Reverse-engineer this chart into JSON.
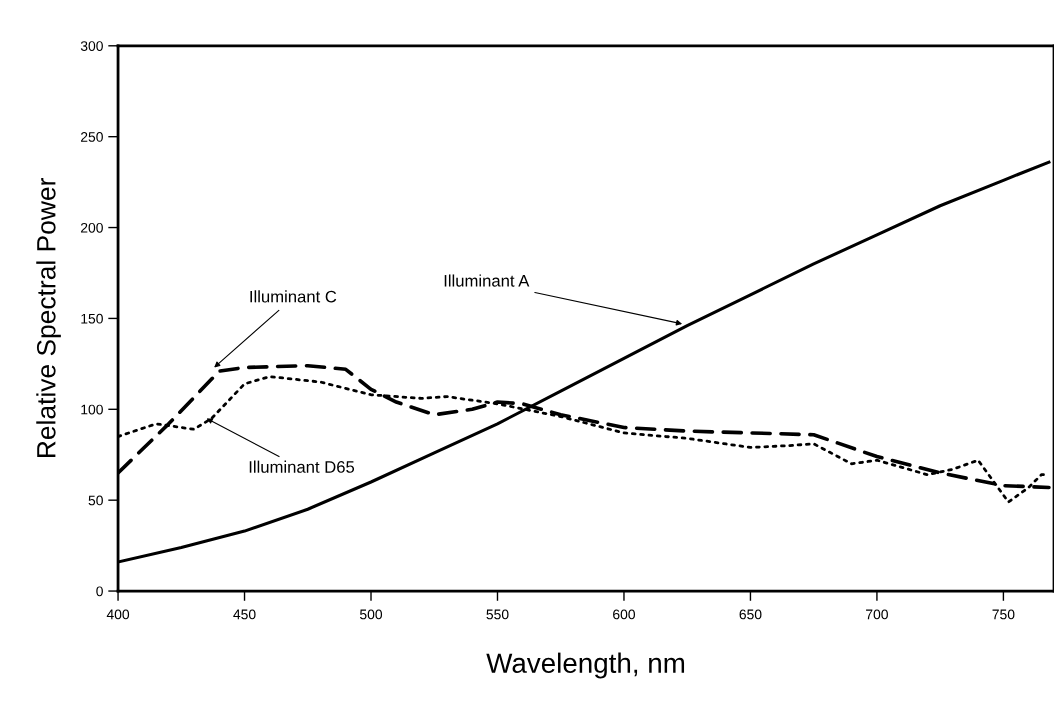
{
  "chart_data": {
    "type": "line",
    "xlabel": "Wavelength, nm",
    "ylabel": "Relative Spectral Power",
    "xlim": [
      400,
      770
    ],
    "ylim": [
      0,
      300
    ],
    "xticks": [
      400,
      450,
      500,
      550,
      600,
      650,
      700,
      750
    ],
    "yticks": [
      0,
      50,
      100,
      150,
      200,
      250,
      300
    ],
    "grid": false,
    "legend": false,
    "marker": "none",
    "series": [
      {
        "color": "#000000",
        "line_style": "solid",
        "x": [
          400,
          425,
          450,
          475,
          500,
          525,
          550,
          575,
          600,
          625,
          650,
          675,
          700,
          725,
          750,
          768
        ],
        "values": [
          16,
          24,
          33,
          45,
          60,
          76,
          92,
          110,
          128,
          146,
          163,
          180,
          196,
          212,
          226,
          236
        ]
      },
      {
        "color": "#000000",
        "line_style": "dashed",
        "x": [
          400,
          420,
          440,
          450,
          475,
          490,
          500,
          510,
          525,
          540,
          550,
          560,
          575,
          600,
          625,
          650,
          675,
          700,
          725,
          750,
          768
        ],
        "values": [
          65,
          92,
          121,
          123,
          124,
          122,
          111,
          104,
          97,
          100,
          104,
          103,
          97,
          90,
          88,
          87,
          86,
          74,
          65,
          58,
          57
        ]
      },
      {
        "color": "#000000",
        "line_style": "dotted",
        "x": [
          400,
          415,
          430,
          437,
          450,
          460,
          480,
          500,
          520,
          530,
          550,
          575,
          600,
          625,
          650,
          665,
          675,
          690,
          700,
          720,
          730,
          740,
          752,
          760,
          765,
          768
        ],
        "values": [
          85,
          92,
          89,
          95,
          114,
          118,
          115,
          108,
          106,
          107,
          103,
          96,
          87,
          84,
          79,
          80,
          81,
          70,
          72,
          64,
          67,
          72,
          49,
          57,
          64,
          64
        ]
      }
    ],
    "annotations": [
      {
        "text": "Illuminant A",
        "x": 623,
        "y": 147
      },
      {
        "text": "Illuminant C",
        "x": 438,
        "y": 123
      },
      {
        "text": "Illuminant D65",
        "x": 435,
        "y": 95
      }
    ]
  }
}
